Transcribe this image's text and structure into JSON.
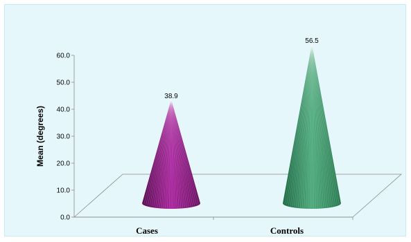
{
  "chart_data": {
    "type": "bar",
    "style": "3d-cone",
    "categories": [
      "Cases",
      "Controls"
    ],
    "values": [
      38.9,
      56.5
    ],
    "value_labels": [
      "38.9",
      "56.5"
    ],
    "colors": [
      "#9b1e8f",
      "#3f9a6c"
    ],
    "title": "",
    "xlabel": "",
    "ylabel": "Mean (degrees)",
    "ylim": [
      0,
      60
    ],
    "yticks": [
      "0.0",
      "10.0",
      "20.0",
      "30.0",
      "40.0",
      "50.0",
      "60.0"
    ],
    "grid": false,
    "legend": "none",
    "background": "#e6f7fb"
  }
}
